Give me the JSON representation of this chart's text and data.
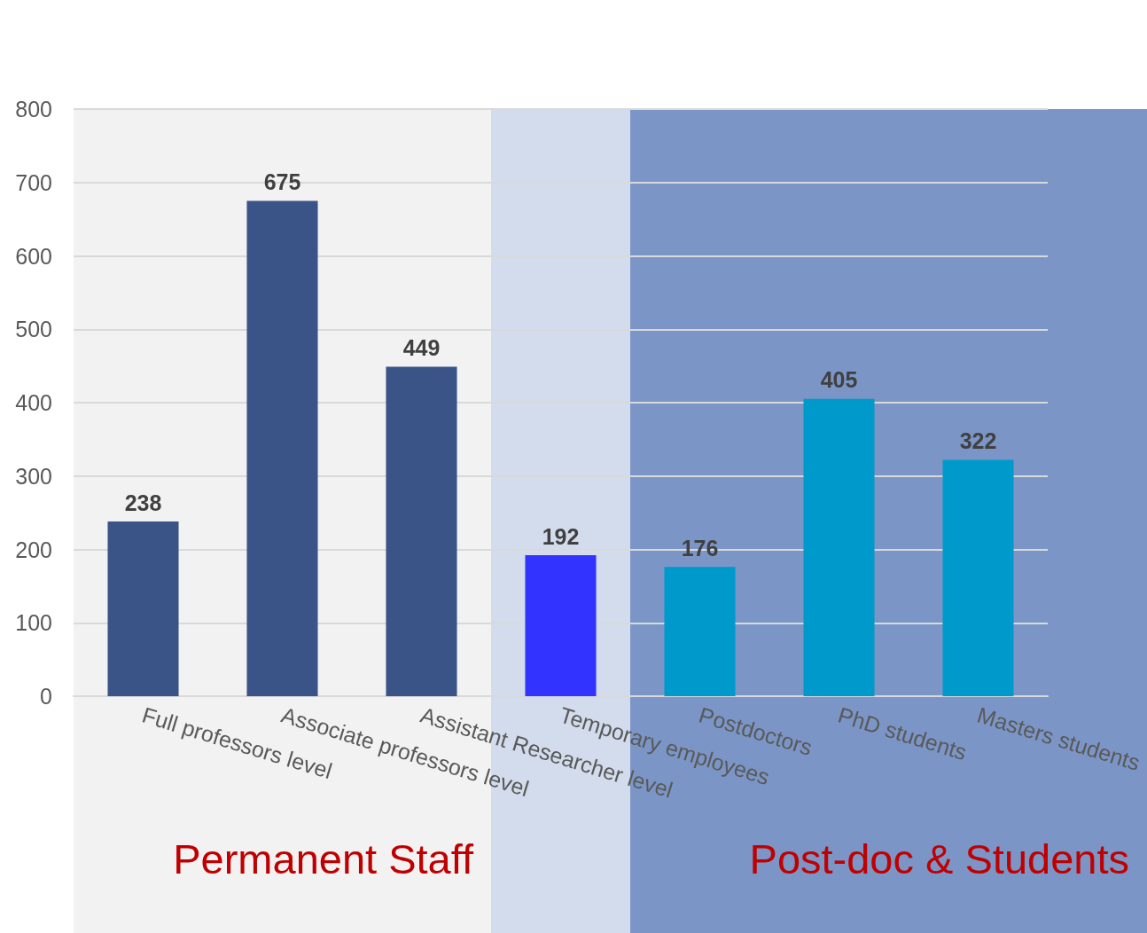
{
  "chart_data": {
    "type": "bar",
    "categories": [
      "Full professors level",
      "Associate professors level",
      "Assistant Researcher level",
      "Temporary employees",
      "Postdoctors",
      "PhD students",
      "Masters students"
    ],
    "values": [
      238,
      675,
      449,
      192,
      176,
      405,
      322
    ],
    "colors": [
      "#3b5488",
      "#3b5488",
      "#3b5488",
      "#3333ff",
      "#0099cc",
      "#0099cc",
      "#0099cc"
    ],
    "data_labels": true,
    "ylim": [
      0,
      800
    ],
    "yticks": [
      0,
      100,
      200,
      300,
      400,
      500,
      600,
      700,
      800
    ],
    "grid": "y",
    "bands": [
      {
        "axis": "x",
        "from": "Full professors level",
        "to": "Assistant Researcher level",
        "color": "#f2f2f2",
        "label": "Permanent Staff"
      },
      {
        "axis": "x",
        "from": "Temporary employees",
        "to": "Temporary employees",
        "color": "#d3dcec"
      },
      {
        "axis": "x",
        "from": "Postdoctors",
        "to": "Masters students",
        "color": "#7b96c6",
        "label": "Post-doc & Students"
      }
    ]
  }
}
